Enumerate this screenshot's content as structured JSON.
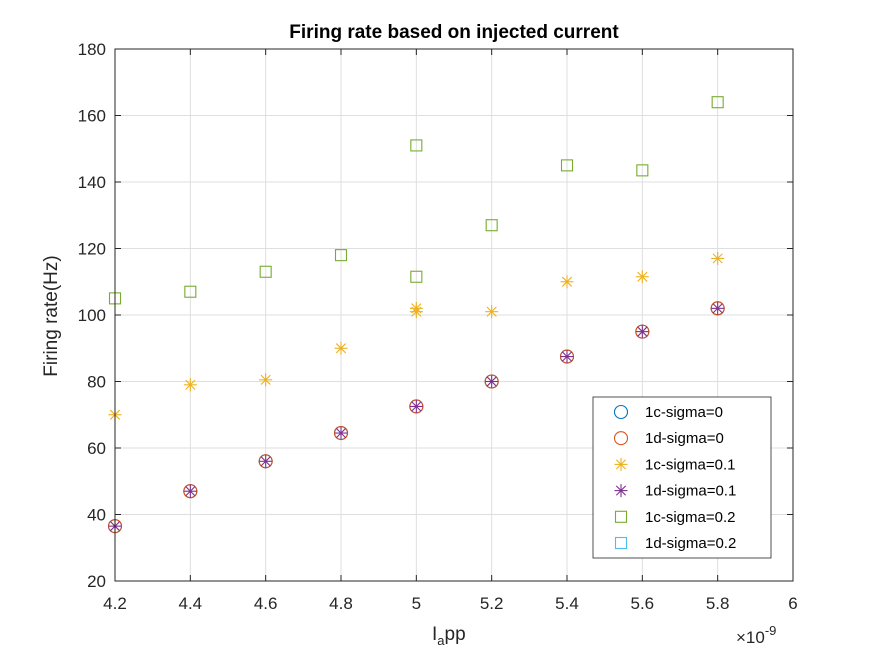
{
  "chart_data": {
    "type": "scatter",
    "title": "Firing rate based on injected current",
    "xlabel": {
      "base": "I",
      "sub": "a",
      "rest": "pp"
    },
    "ylabel": "Firing rate(Hz)",
    "x_exponent": {
      "prefix": "×10",
      "power": "-9"
    },
    "xlim": [
      4.2,
      6.0
    ],
    "ylim": [
      20,
      180
    ],
    "xticks": [
      4.2,
      4.4,
      4.6,
      4.8,
      5.0,
      5.2,
      5.4,
      5.6,
      5.8,
      6.0
    ],
    "xtick_labels": [
      "4.2",
      "4.4",
      "4.6",
      "4.8",
      "5",
      "5.2",
      "5.4",
      "5.6",
      "5.8",
      "6"
    ],
    "yticks": [
      20,
      40,
      60,
      80,
      100,
      120,
      140,
      160,
      180
    ],
    "ytick_labels": [
      "20",
      "40",
      "60",
      "80",
      "100",
      "120",
      "140",
      "160",
      "180"
    ],
    "grid": true,
    "legend_position": "bottom-right",
    "series": [
      {
        "name": "1c-sigma=0",
        "marker": "circle",
        "color": "#0072BD",
        "x": [
          4.2,
          4.4,
          4.6,
          4.8,
          5.0,
          5.2,
          5.4,
          5.6,
          5.8
        ],
        "y": [
          36.5,
          47,
          56,
          64.5,
          72.5,
          80,
          87.5,
          95,
          102
        ]
      },
      {
        "name": "1d-sigma=0",
        "marker": "circle",
        "color": "#D95319",
        "x": [
          4.2,
          4.4,
          4.6,
          4.8,
          5.0,
          5.2,
          5.4,
          5.6,
          5.8
        ],
        "y": [
          36.5,
          47,
          56,
          64.5,
          72.5,
          80,
          87.5,
          95,
          102
        ]
      },
      {
        "name": "1c-sigma=0.1",
        "marker": "asterisk",
        "color": "#EDB120",
        "x": [
          4.2,
          4.4,
          4.6,
          4.8,
          5.0,
          5.0,
          5.2,
          5.4,
          5.6,
          5.8
        ],
        "y": [
          70,
          79,
          80.5,
          90,
          101,
          102,
          101,
          110,
          111.5,
          117
        ]
      },
      {
        "name": "1d-sigma=0.1",
        "marker": "asterisk",
        "color": "#7E2F8E",
        "x": [
          4.2,
          4.4,
          4.6,
          4.8,
          5.0,
          5.2,
          5.4,
          5.6,
          5.8
        ],
        "y": [
          36.5,
          47,
          56,
          64.5,
          72.5,
          80,
          87.5,
          95,
          102
        ]
      },
      {
        "name": "1c-sigma=0.2",
        "marker": "square",
        "color": "#77AC30",
        "x": [
          4.2,
          4.4,
          4.6,
          4.8,
          5.0,
          5.0,
          5.2,
          5.4,
          5.6,
          5.8
        ],
        "y": [
          105,
          107,
          113,
          118,
          111.5,
          151,
          127,
          145,
          143.5,
          164
        ]
      },
      {
        "name": "1d-sigma=0.2",
        "marker": "square",
        "color": "#4DBEEE",
        "x": [],
        "y": []
      }
    ]
  }
}
